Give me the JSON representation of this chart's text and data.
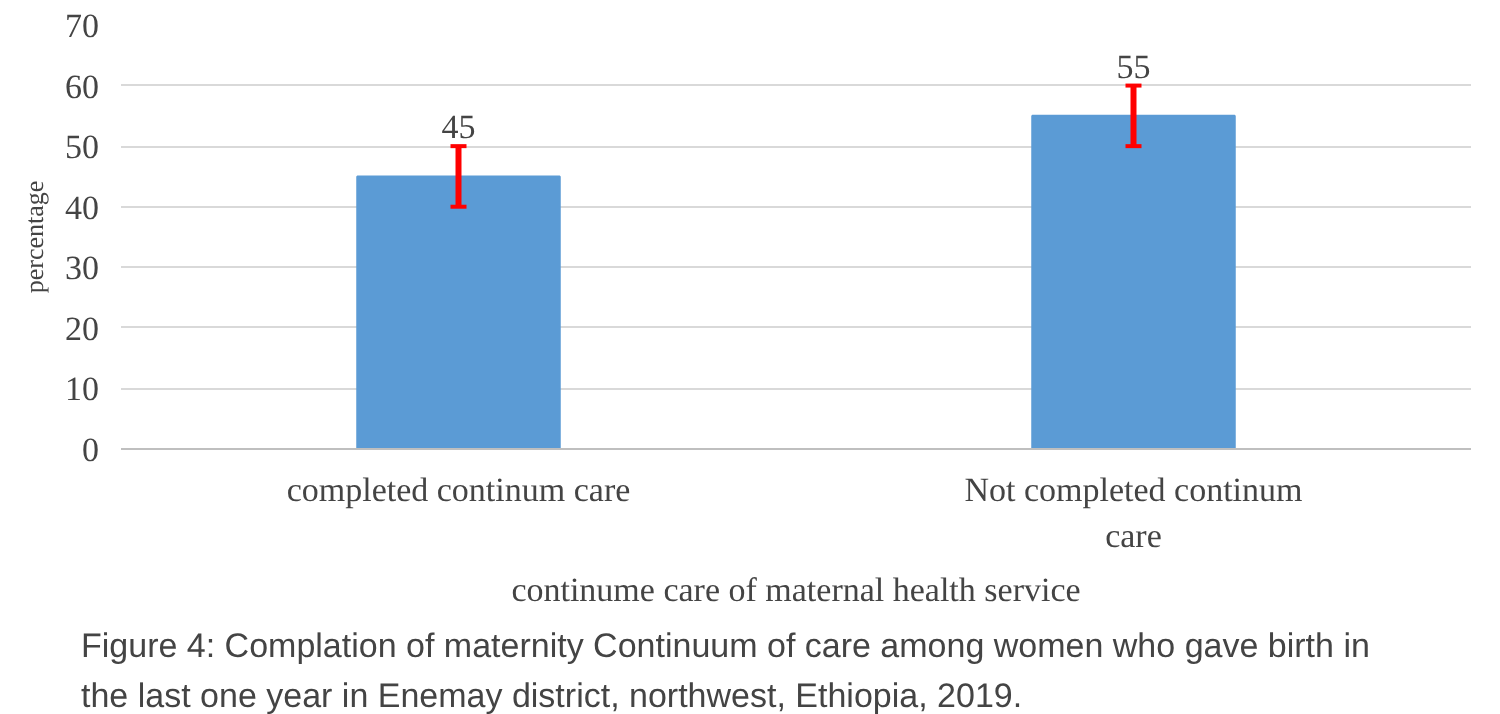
{
  "chart_data": {
    "type": "bar",
    "categories": [
      "completed continum care",
      "Not completed continum care"
    ],
    "values": [
      45,
      55
    ],
    "errors": [
      5,
      5
    ],
    "color": "#5b9bd5",
    "ylabel": "percentage",
    "xlabel": "continume care of maternal health service",
    "ylim": [
      0,
      70
    ],
    "yticks": [
      0,
      10,
      20,
      30,
      40,
      50,
      60,
      70
    ],
    "grid": "y",
    "data_labels": true,
    "annotations": [
      "Figure 4: Complation of maternity Continuum of  care among women who gave birth in the last one year in Enemay district, northwest, Ethiopia, 2019."
    ]
  }
}
